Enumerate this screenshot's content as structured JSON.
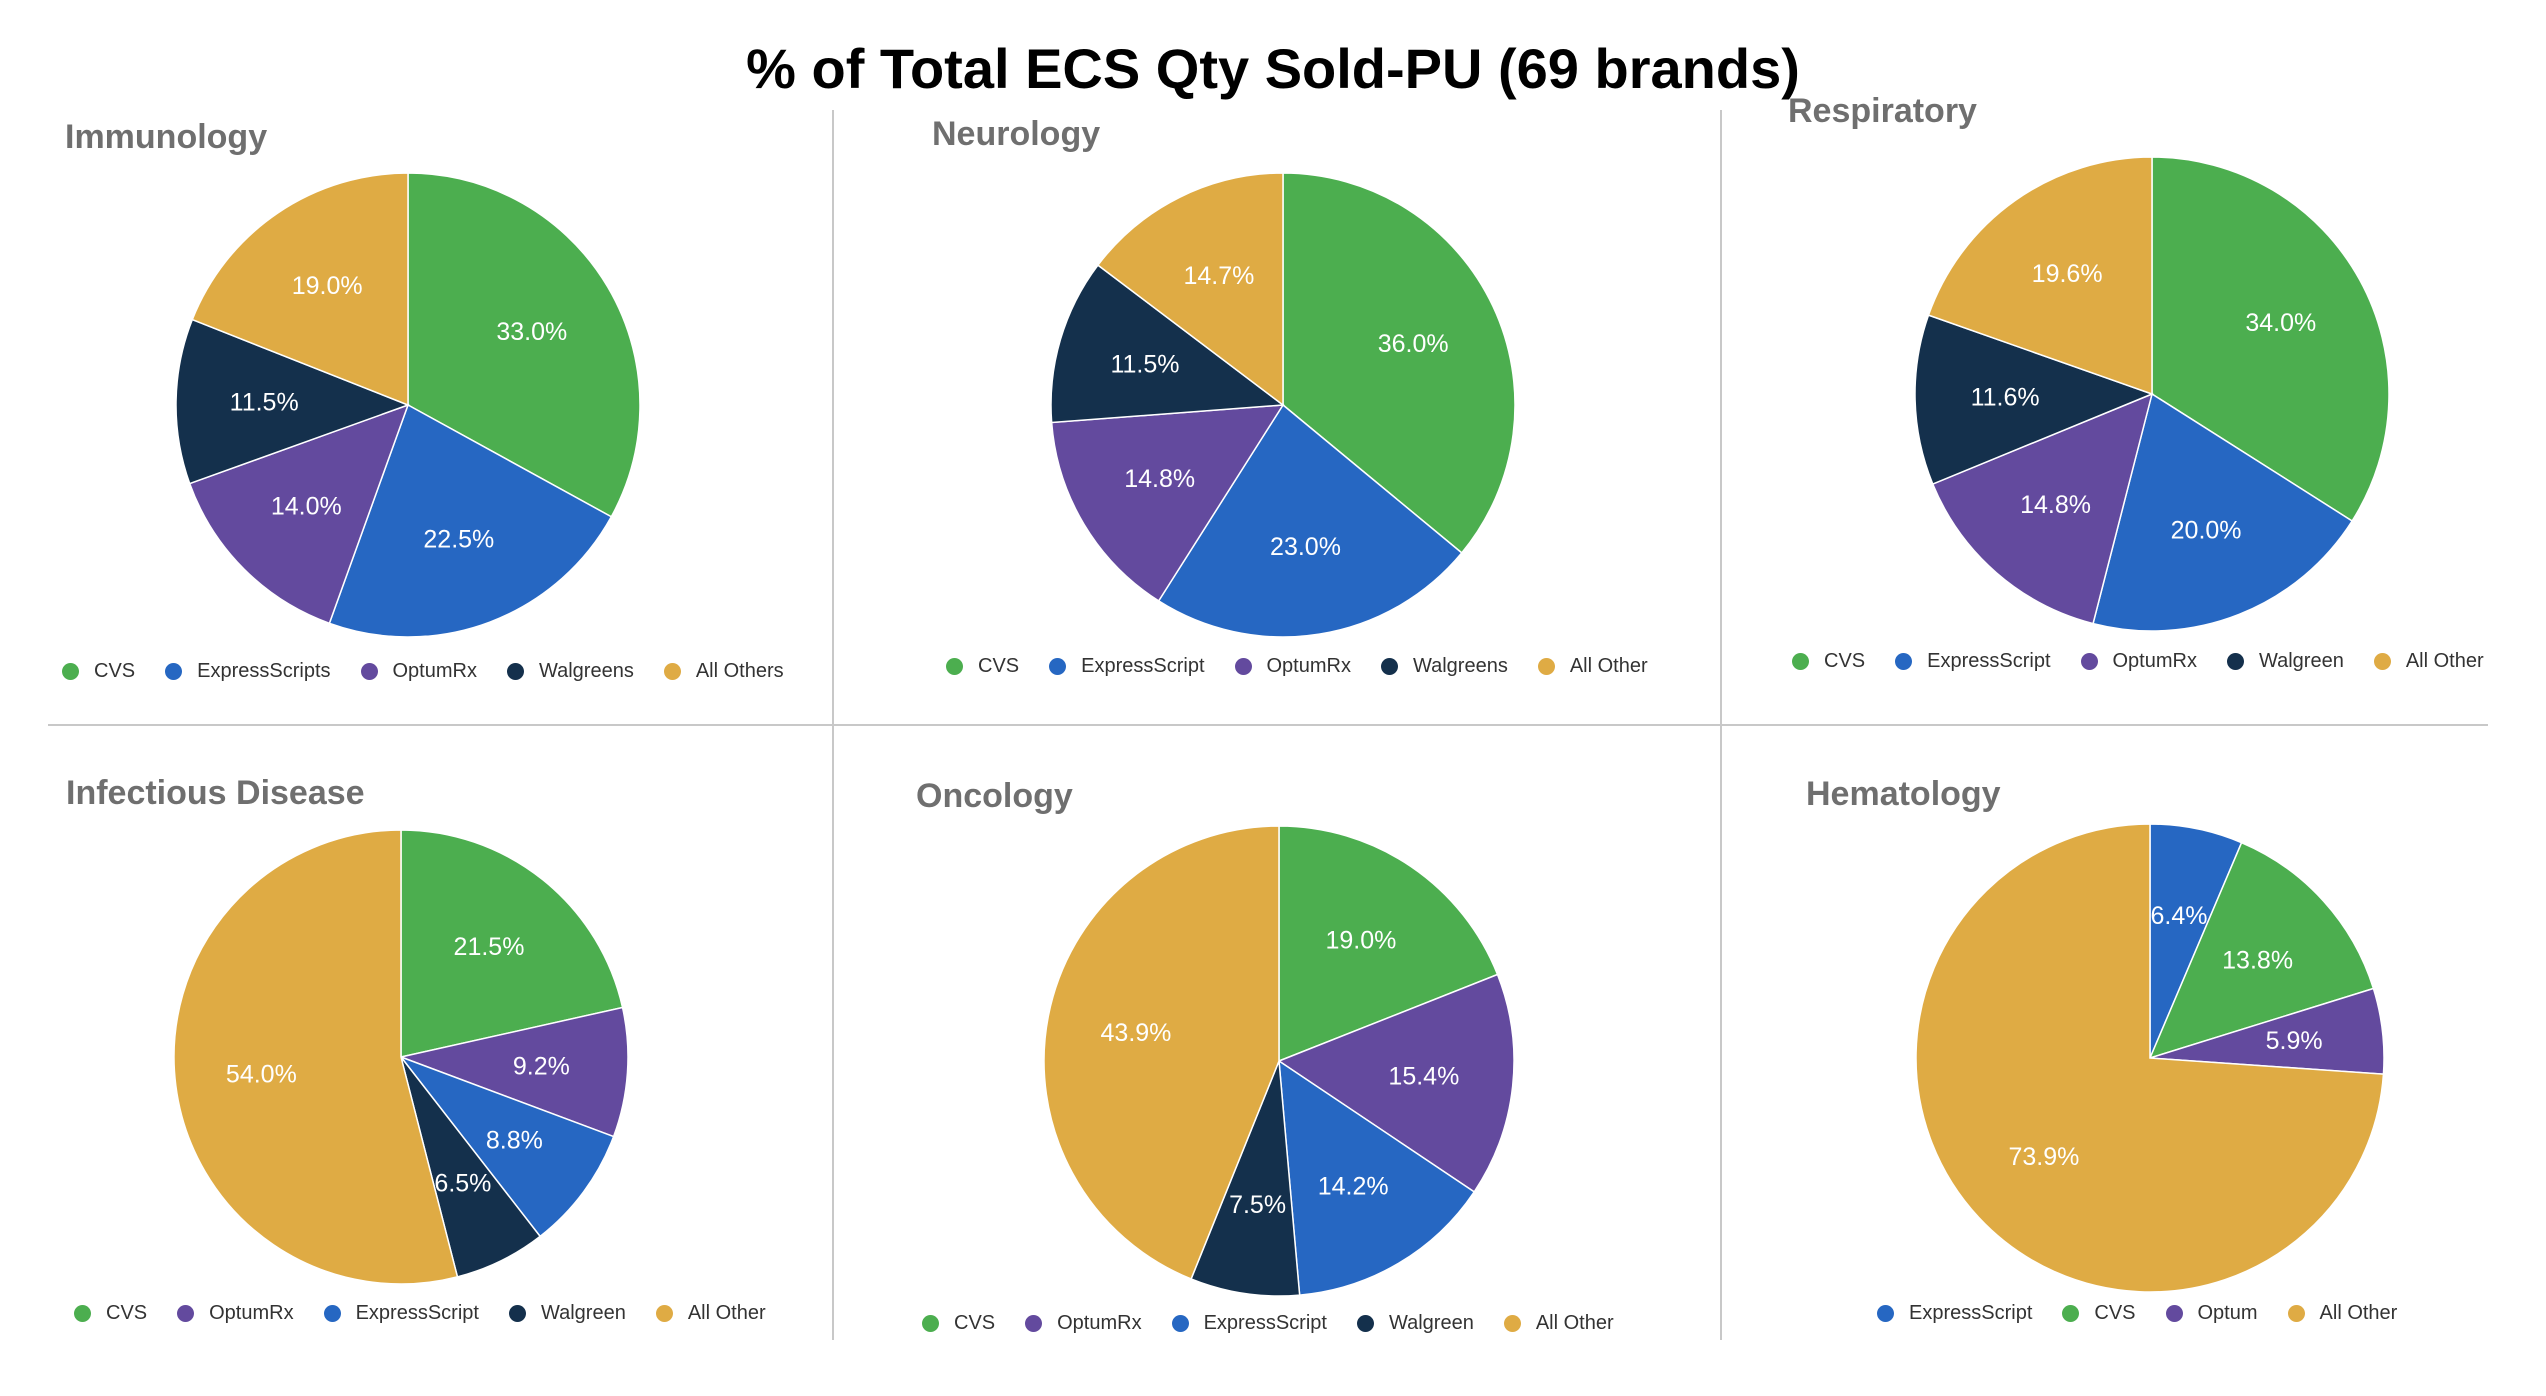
{
  "page_title": "% of Total ECS Qty Sold-PU (69 brands)",
  "colors": {
    "green": "#4cae4f",
    "blue": "#2667c2",
    "purple": "#634a9e",
    "navy": "#14304c",
    "gold": "#dfab44"
  },
  "chart_data": [
    {
      "type": "pie",
      "title": "Immunology",
      "slices": [
        {
          "label": "CVS",
          "value": 33.0,
          "display": "33.0%",
          "color": "#4cae4f"
        },
        {
          "label": "ExpressScripts",
          "value": 22.5,
          "display": "22.5%",
          "color": "#2667c2"
        },
        {
          "label": "OptumRx",
          "value": 14.0,
          "display": "14.0%",
          "color": "#634a9e"
        },
        {
          "label": "Walgreens",
          "value": 11.5,
          "display": "11.5%",
          "color": "#14304c"
        },
        {
          "label": "All Others",
          "value": 19.0,
          "display": "19.0%",
          "color": "#dfab44"
        }
      ],
      "legend": [
        "CVS",
        "ExpressScripts",
        "OptumRx",
        "Walgreens",
        "All Others"
      ]
    },
    {
      "type": "pie",
      "title": "Neurology",
      "slices": [
        {
          "label": "CVS",
          "value": 36.0,
          "display": "36.0%",
          "color": "#4cae4f"
        },
        {
          "label": "ExpressScript",
          "value": 23.0,
          "display": "23.0%",
          "color": "#2667c2"
        },
        {
          "label": "OptumRx",
          "value": 14.8,
          "display": "14.8%",
          "color": "#634a9e"
        },
        {
          "label": "Walgreens",
          "value": 11.5,
          "display": "11.5%",
          "color": "#14304c"
        },
        {
          "label": "All Other",
          "value": 14.7,
          "display": "14.7%",
          "color": "#dfab44"
        }
      ],
      "legend": [
        "CVS",
        "ExpressScript",
        "OptumRx",
        "Walgreens",
        "All Other"
      ]
    },
    {
      "type": "pie",
      "title": "Respiratory",
      "slices": [
        {
          "label": "CVS",
          "value": 34.0,
          "display": "34.0%",
          "color": "#4cae4f"
        },
        {
          "label": "ExpressScript",
          "value": 20.0,
          "display": "20.0%",
          "color": "#2667c2"
        },
        {
          "label": "OptumRx",
          "value": 14.8,
          "display": "14.8%",
          "color": "#634a9e"
        },
        {
          "label": "Walgreen",
          "value": 11.6,
          "display": "11.6%",
          "color": "#14304c"
        },
        {
          "label": "All Other",
          "value": 19.6,
          "display": "19.6%",
          "color": "#dfab44"
        }
      ],
      "legend": [
        "CVS",
        "ExpressScript",
        "OptumRx",
        "Walgreen",
        "All Other"
      ]
    },
    {
      "type": "pie",
      "title": "Infectious Disease",
      "slices": [
        {
          "label": "CVS",
          "value": 21.5,
          "display": "21.5%",
          "color": "#4cae4f"
        },
        {
          "label": "OptumRx",
          "value": 9.2,
          "display": "9.2%",
          "color": "#634a9e"
        },
        {
          "label": "ExpressScript",
          "value": 8.8,
          "display": "8.8%",
          "color": "#2667c2"
        },
        {
          "label": "Walgreen",
          "value": 6.5,
          "display": "6.5%",
          "color": "#14304c"
        },
        {
          "label": "All Other",
          "value": 54.0,
          "display": "54.0%",
          "color": "#dfab44"
        }
      ],
      "legend": [
        "CVS",
        "OptumRx",
        "ExpressScript",
        "Walgreen",
        "All Other"
      ]
    },
    {
      "type": "pie",
      "title": "Oncology",
      "slices": [
        {
          "label": "CVS",
          "value": 19.0,
          "display": "19.0%",
          "color": "#4cae4f"
        },
        {
          "label": "OptumRx",
          "value": 15.4,
          "display": "15.4%",
          "color": "#634a9e"
        },
        {
          "label": "ExpressScript",
          "value": 14.2,
          "display": "14.2%",
          "color": "#2667c2"
        },
        {
          "label": "Walgreen",
          "value": 7.5,
          "display": "7.5%",
          "color": "#14304c"
        },
        {
          "label": "All Other",
          "value": 43.9,
          "display": "43.9%",
          "color": "#dfab44"
        }
      ],
      "legend": [
        "CVS",
        "OptumRx",
        "ExpressScript",
        "Walgreen",
        "All Other"
      ]
    },
    {
      "type": "pie",
      "title": "Hematology",
      "slices": [
        {
          "label": "ExpressScript",
          "value": 6.4,
          "display": "6.4%",
          "color": "#2667c2"
        },
        {
          "label": "CVS",
          "value": 13.8,
          "display": "13.8%",
          "color": "#4cae4f"
        },
        {
          "label": "Optum",
          "value": 5.9,
          "display": "5.9%",
          "color": "#634a9e"
        },
        {
          "label": "All Other",
          "value": 73.9,
          "display": "73.9%",
          "color": "#dfab44"
        }
      ],
      "legend": [
        "ExpressScript",
        "CVS",
        "Optum",
        "All Other"
      ]
    }
  ]
}
